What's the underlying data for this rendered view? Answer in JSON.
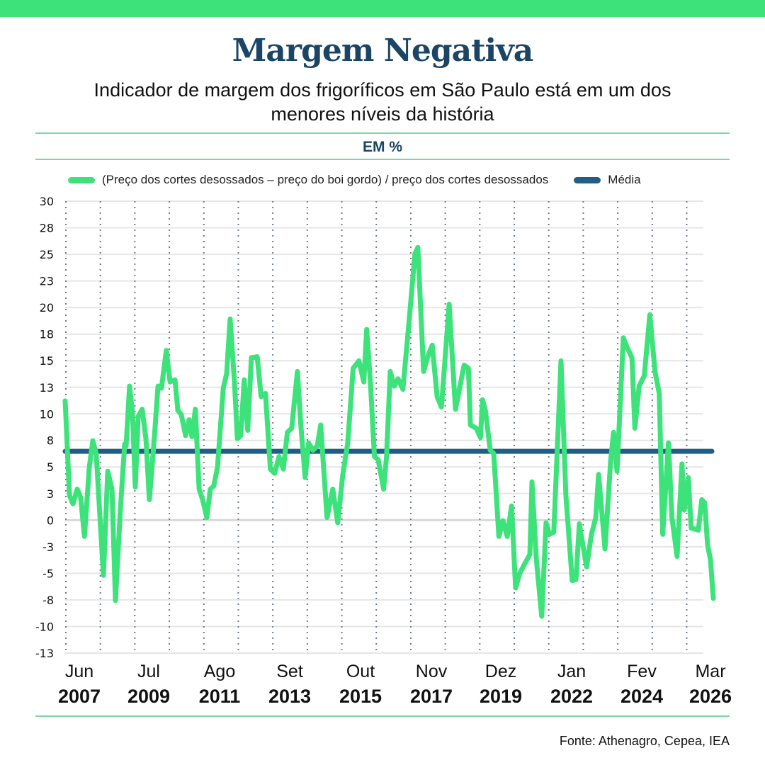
{
  "header": {
    "title": "Margem Negativa",
    "subtitle": "Indicador de margem dos frigoríficos em São Paulo está em um dos menores níveis da história",
    "unit": "EM %"
  },
  "source": "Fonte: Athenagro, Cepea, IEA",
  "colors": {
    "series": "#3de27b",
    "average": "#1f5f86",
    "accent_bar": "#3de27b",
    "title": "#1c4565"
  },
  "chart_data": {
    "type": "line",
    "title": "Margem Negativa",
    "ylabel": "EM %",
    "xlabel": "",
    "ylim": [
      -13,
      30
    ],
    "y_ticks": [
      "30",
      "28",
      "25",
      "23",
      "20",
      "18",
      "15",
      "13",
      "10",
      "8",
      "5",
      "3",
      "0",
      "-3",
      "-5",
      "-8",
      "-10",
      "-13"
    ],
    "y_tick_values": [
      30,
      27.47,
      24.94,
      22.41,
      19.88,
      17.35,
      14.82,
      12.29,
      9.76,
      7.24,
      4.71,
      2.18,
      -0.35,
      -2.88,
      -5.41,
      -7.94,
      -10.47,
      -13
    ],
    "x_start": "Jun 2007",
    "x_end": "Mar 2026",
    "x_unit": "months since Jun 2007",
    "x_ticks": [
      {
        "month": "Jun",
        "year": "2007",
        "index": 0
      },
      {
        "month": "Jul",
        "year": "2009",
        "index": 25
      },
      {
        "month": "Ago",
        "year": "2011",
        "index": 50
      },
      {
        "month": "Set",
        "year": "2013",
        "index": 75
      },
      {
        "month": "Out",
        "year": "2015",
        "index": 100
      },
      {
        "month": "Nov",
        "year": "2017",
        "index": 125
      },
      {
        "month": "Dez",
        "year": "2019",
        "index": 150
      },
      {
        "month": "Jan",
        "year": "2022",
        "index": 175
      },
      {
        "month": "Fev",
        "year": "2024",
        "index": 200
      },
      {
        "month": "Mar",
        "year": "2026",
        "index": 225
      }
    ],
    "grid": true,
    "legend_position": "top",
    "series": [
      {
        "name": "(Preço dos cortes desossados – preço do boi gordo) / preço dos cortes desossados",
        "points": [
          [
            0,
            11.0
          ],
          [
            1.5,
            2.0
          ],
          [
            2.7,
            1.2
          ],
          [
            4.2,
            2.6
          ],
          [
            5.4,
            1.8
          ],
          [
            6.7,
            -1.9
          ],
          [
            8.4,
            4.7
          ],
          [
            9.6,
            7.2
          ],
          [
            10.8,
            6.0
          ],
          [
            13.3,
            -5.6
          ],
          [
            14.8,
            4.3
          ],
          [
            16.3,
            2.6
          ],
          [
            17.5,
            -8.0
          ],
          [
            19.2,
            0.6
          ],
          [
            20.7,
            6.9
          ],
          [
            21.2,
            6.7
          ],
          [
            22.4,
            12.4
          ],
          [
            23.4,
            9.9
          ],
          [
            24.4,
            2.8
          ],
          [
            25.4,
            9.5
          ],
          [
            26.8,
            10.2
          ],
          [
            28.1,
            7.4
          ],
          [
            29.3,
            1.6
          ],
          [
            30.8,
            6.7
          ],
          [
            32.3,
            12.4
          ],
          [
            33.5,
            12.2
          ],
          [
            35.2,
            15.8
          ],
          [
            36.5,
            12.8
          ],
          [
            38.2,
            13.0
          ],
          [
            39.2,
            10.1
          ],
          [
            40.4,
            9.7
          ],
          [
            41.9,
            7.7
          ],
          [
            43.1,
            9.2
          ],
          [
            44.1,
            7.6
          ],
          [
            45.3,
            10.2
          ],
          [
            46.6,
            2.6
          ],
          [
            47.8,
            1.6
          ],
          [
            49.3,
            -0.1
          ],
          [
            50.5,
            2.6
          ],
          [
            51.7,
            2.9
          ],
          [
            53.0,
            4.7
          ],
          [
            55.0,
            12.2
          ],
          [
            56.2,
            13.6
          ],
          [
            57.4,
            18.8
          ],
          [
            58.9,
            12.8
          ],
          [
            59.9,
            7.4
          ],
          [
            61.1,
            7.7
          ],
          [
            62.3,
            13.0
          ],
          [
            63.5,
            8.2
          ],
          [
            64.8,
            15.1
          ],
          [
            66.8,
            15.2
          ],
          [
            68.2,
            11.4
          ],
          [
            69.7,
            11.7
          ],
          [
            71.4,
            4.5
          ],
          [
            72.9,
            4.1
          ],
          [
            74.4,
            5.7
          ],
          [
            75.9,
            4.5
          ],
          [
            77.3,
            8.0
          ],
          [
            78.8,
            8.4
          ],
          [
            80.8,
            13.8
          ],
          [
            82.0,
            8.7
          ],
          [
            83.5,
            3.7
          ],
          [
            84.7,
            7.0
          ],
          [
            86.2,
            6.3
          ],
          [
            87.7,
            6.7
          ],
          [
            88.9,
            8.7
          ],
          [
            91.1,
            -0.1
          ],
          [
            93.1,
            2.6
          ],
          [
            94.8,
            -0.6
          ],
          [
            96.6,
            4.0
          ],
          [
            98.3,
            7.0
          ],
          [
            100.2,
            14.1
          ],
          [
            102.2,
            14.8
          ],
          [
            103.9,
            12.8
          ],
          [
            104.9,
            17.8
          ],
          [
            106.2,
            12.8
          ],
          [
            107.6,
            5.7
          ],
          [
            108.9,
            5.4
          ],
          [
            110.8,
            2.6
          ],
          [
            111.8,
            5.7
          ],
          [
            113.1,
            13.8
          ],
          [
            114.5,
            12.4
          ],
          [
            115.8,
            13.1
          ],
          [
            117.5,
            12.1
          ],
          [
            119.5,
            18.1
          ],
          [
            121.7,
            25.0
          ],
          [
            122.7,
            25.6
          ],
          [
            124.7,
            13.8
          ],
          [
            126.4,
            15.4
          ],
          [
            127.7,
            16.3
          ],
          [
            129.4,
            11.4
          ],
          [
            130.9,
            10.4
          ],
          [
            133.6,
            20.2
          ],
          [
            135.8,
            10.2
          ],
          [
            138.8,
            14.4
          ],
          [
            140.3,
            14.1
          ],
          [
            141.0,
            8.7
          ],
          [
            143.0,
            8.4
          ],
          [
            144.5,
            7.5
          ],
          [
            145.2,
            11.1
          ],
          [
            146.2,
            10.1
          ],
          [
            147.9,
            6.3
          ],
          [
            149.1,
            6.0
          ],
          [
            150.9,
            -1.9
          ],
          [
            152.3,
            -0.4
          ],
          [
            153.8,
            -1.9
          ],
          [
            155.3,
            1.0
          ],
          [
            156.7,
            -6.8
          ],
          [
            158.2,
            -5.4
          ],
          [
            159.7,
            -4.6
          ],
          [
            161.7,
            -3.6
          ],
          [
            162.4,
            3.3
          ],
          [
            163.9,
            -4.0
          ],
          [
            165.8,
            -9.5
          ],
          [
            167.3,
            -0.6
          ],
          [
            168.5,
            -1.7
          ],
          [
            170.0,
            -1.5
          ],
          [
            172.5,
            14.8
          ],
          [
            174.2,
            2.0
          ],
          [
            176.4,
            -6.1
          ],
          [
            177.7,
            -6.0
          ],
          [
            178.9,
            -0.7
          ],
          [
            181.4,
            -4.8
          ],
          [
            183.1,
            -1.7
          ],
          [
            184.6,
            -0.1
          ],
          [
            185.6,
            4.0
          ],
          [
            187.8,
            -3.1
          ],
          [
            189.8,
            5.4
          ],
          [
            190.8,
            8.0
          ],
          [
            192.0,
            4.3
          ],
          [
            194.2,
            17.0
          ],
          [
            195.5,
            16.1
          ],
          [
            197.2,
            15.1
          ],
          [
            198.2,
            8.4
          ],
          [
            199.7,
            12.4
          ],
          [
            201.5,
            13.4
          ],
          [
            203.4,
            19.2
          ],
          [
            205.2,
            13.8
          ],
          [
            206.7,
            11.7
          ],
          [
            207.9,
            -1.7
          ],
          [
            209.9,
            7.0
          ],
          [
            211.1,
            -0.1
          ],
          [
            212.9,
            -3.8
          ],
          [
            214.6,
            5.0
          ],
          [
            215.4,
            0.6
          ],
          [
            216.8,
            3.7
          ],
          [
            217.8,
            -1.1
          ],
          [
            220.3,
            -1.3
          ],
          [
            221.5,
            1.6
          ],
          [
            222.5,
            1.3
          ],
          [
            223.5,
            -2.7
          ],
          [
            224.5,
            -4.1
          ],
          [
            225.5,
            -7.8
          ]
        ]
      },
      {
        "name": "Média",
        "value": 6.2
      }
    ]
  }
}
